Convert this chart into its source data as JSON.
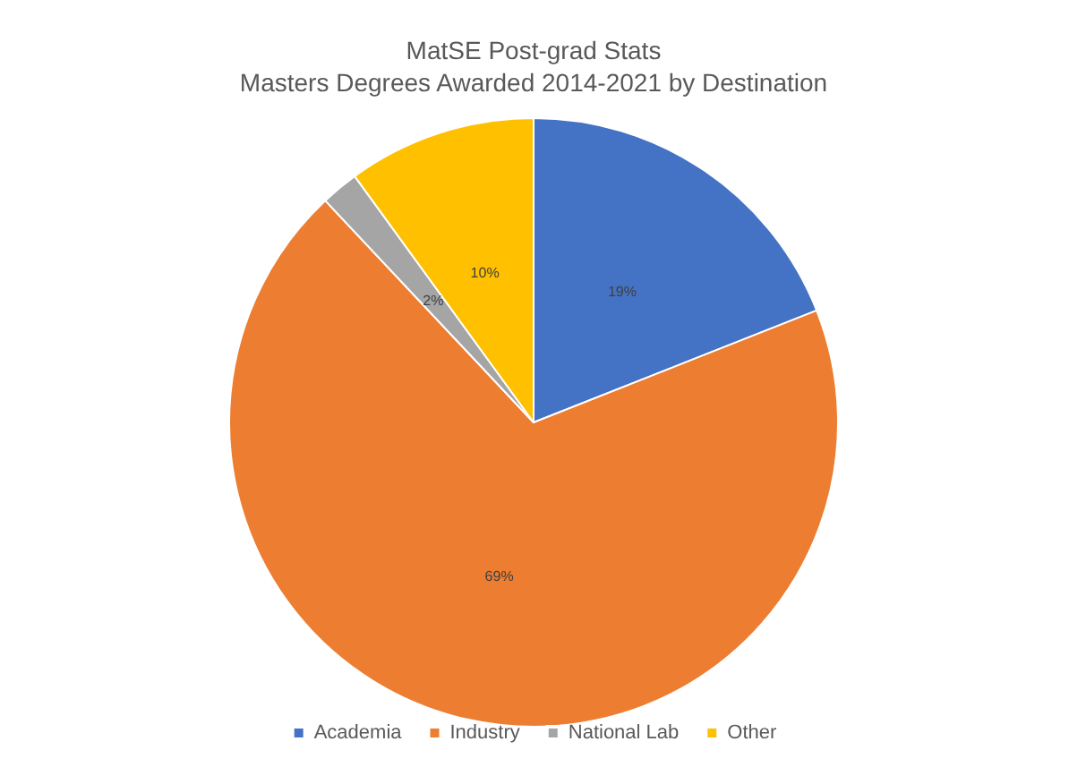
{
  "chart_data": {
    "type": "pie",
    "title": "MatSE Post-grad Stats",
    "subtitle": "Masters Degrees Awarded 2014-2021 by Destination",
    "categories": [
      "Academia",
      "Industry",
      "National Lab",
      "Other"
    ],
    "values": [
      19,
      69,
      2,
      10
    ],
    "colors": [
      "#4472c4",
      "#ed7d31",
      "#a5a5a5",
      "#ffc000"
    ],
    "value_labels": [
      "19%",
      "69%",
      "2%",
      "10%"
    ],
    "legend": "bottom"
  }
}
